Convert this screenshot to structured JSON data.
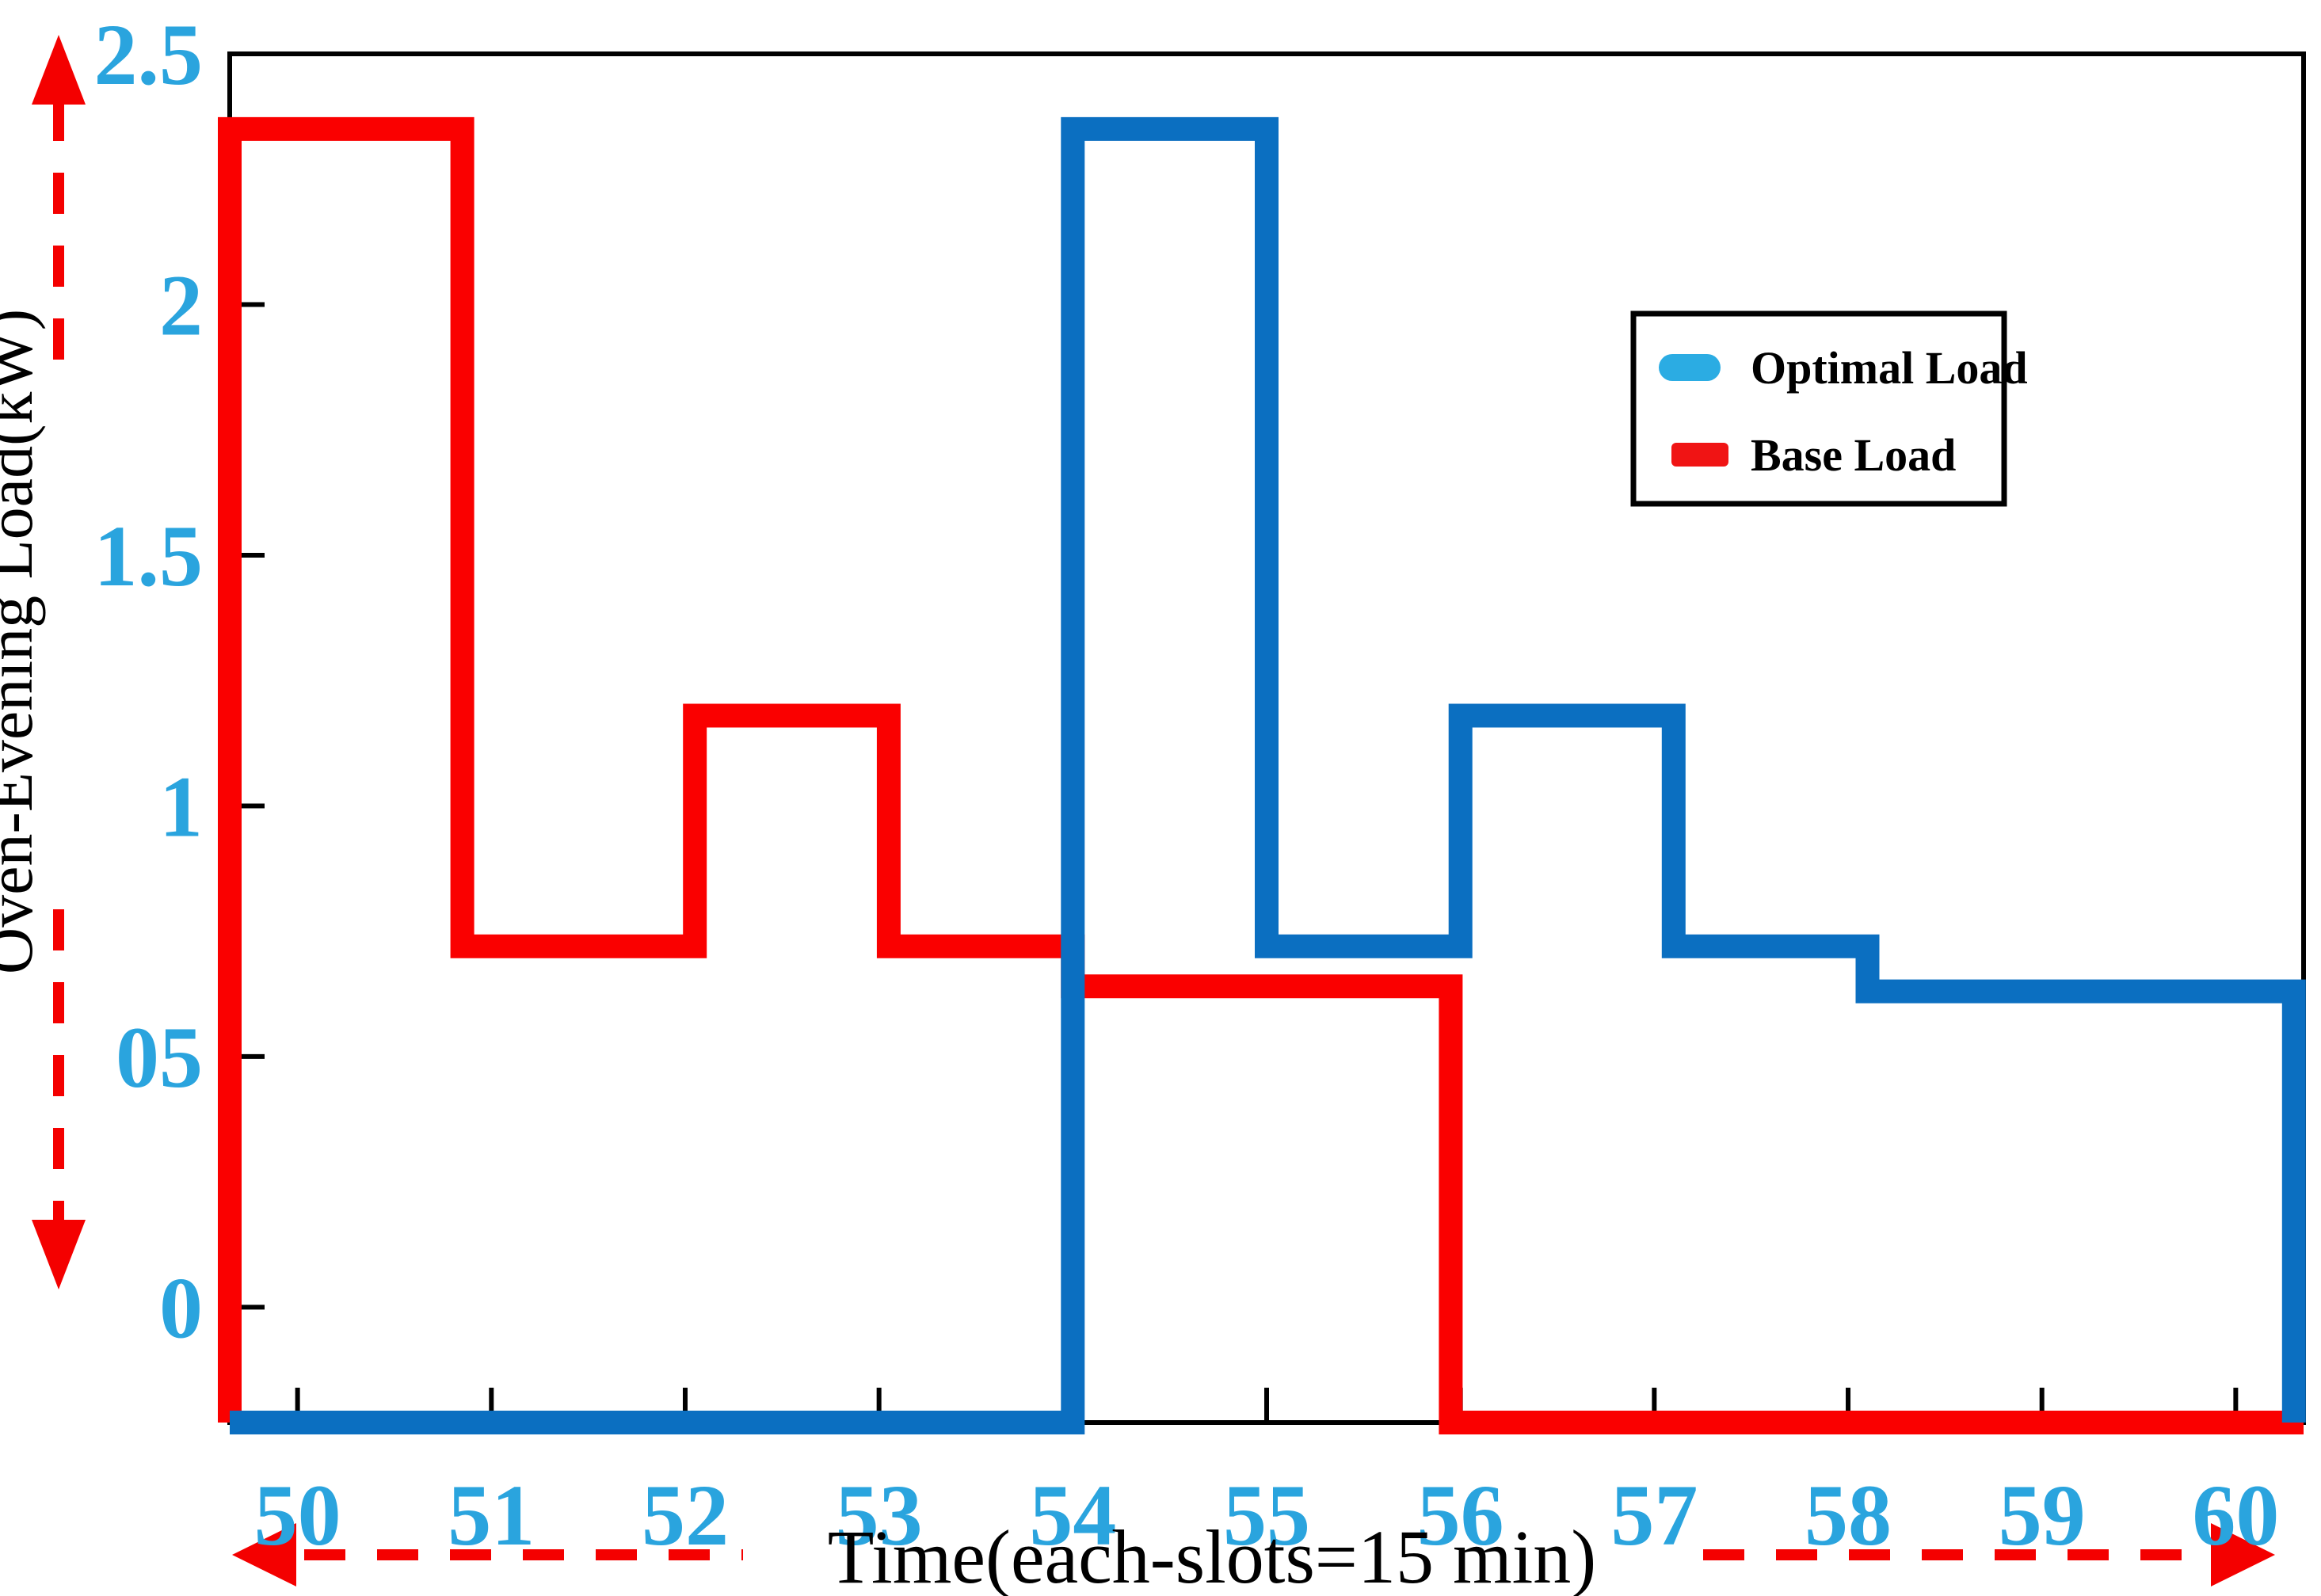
{
  "figure": {
    "background": "#ffffff"
  },
  "colors": {
    "plot_blue": "#0b6fc1",
    "plot_red": "#fa0000",
    "tick_label_blue": "#2aa4de",
    "legend_blue": "#2bace3",
    "legend_red": "#f01414",
    "arrow_red": "#f40000",
    "axis_black": "#000000",
    "text_black": "#000000"
  },
  "legend": {
    "items": [
      {
        "label": "Optimal Load",
        "swatch_color": "#2bace3"
      },
      {
        "label": "Base Load",
        "swatch_color": "#f01414"
      }
    ]
  },
  "chart_data": {
    "type": "line",
    "subtype": "step",
    "title": "",
    "xlabel": "Time(each-slots=15 min)",
    "ylabel": "Oven-Evening Load(kW)",
    "x_ticks": [
      50,
      51,
      52,
      53,
      54,
      55,
      56,
      57,
      58,
      59,
      60
    ],
    "y_ticks": [
      {
        "label": "2.5",
        "value": 2.5
      },
      {
        "label": "2",
        "value": 2.0
      },
      {
        "label": "1.5",
        "value": 1.5
      },
      {
        "label": "1",
        "value": 1.0
      },
      {
        "label": "05",
        "value": 0.5
      },
      {
        "label": "0",
        "value": 0.0
      }
    ],
    "x_range": [
      49.65,
      60.35
    ],
    "y_range": [
      -0.23,
      2.5
    ],
    "baseline_value": -0.23,
    "grid": false,
    "legend_position": "upper-right-inside",
    "series": [
      {
        "name": "Base Load",
        "color": "#fa0000",
        "points": [
          [
            49.65,
            -0.23
          ],
          [
            49.65,
            2.35
          ],
          [
            50.85,
            2.35
          ],
          [
            50.85,
            0.72
          ],
          [
            52.05,
            0.72
          ],
          [
            52.05,
            1.18
          ],
          [
            53.05,
            1.18
          ],
          [
            53.05,
            0.72
          ],
          [
            54.0,
            0.72
          ],
          [
            54.0,
            0.64
          ],
          [
            55.95,
            0.64
          ],
          [
            55.95,
            -0.23
          ],
          [
            60.35,
            -0.23
          ]
        ]
      },
      {
        "name": "Optimal Load",
        "color": "#0b6fc1",
        "points": [
          [
            49.65,
            -0.23
          ],
          [
            54.0,
            -0.23
          ],
          [
            54.0,
            2.35
          ],
          [
            55.0,
            2.35
          ],
          [
            55.0,
            0.72
          ],
          [
            56.0,
            0.72
          ],
          [
            56.0,
            1.18
          ],
          [
            57.1,
            1.18
          ],
          [
            57.1,
            0.72
          ],
          [
            58.1,
            0.72
          ],
          [
            58.1,
            0.63
          ],
          [
            60.3,
            0.63
          ],
          [
            60.3,
            -0.23
          ]
        ]
      }
    ]
  }
}
